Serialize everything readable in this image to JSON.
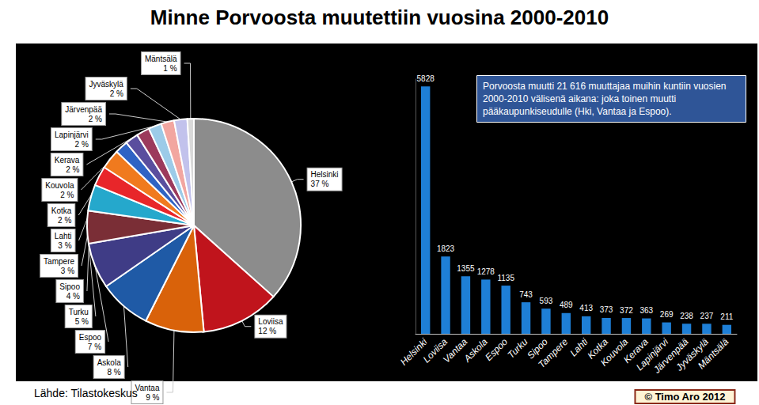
{
  "title": "Minne Porvoosta muutettiin vuosina 2000-2010",
  "source": "Lähde: Tilastokeskus",
  "credit": "© Timo Aro 2012",
  "chart_data": [
    {
      "type": "pie",
      "categories": [
        "Helsinki",
        "Loviisa",
        "Vantaa",
        "Askola",
        "Espoo",
        "Turku",
        "Sipoo",
        "Tampere",
        "Lahti",
        "Kotka",
        "Kouvola",
        "Kerava",
        "Lapinjärvi",
        "Järvenpää",
        "Jyväskylä",
        "Mäntsälä"
      ],
      "values": [
        37,
        12,
        9,
        8,
        7,
        5,
        4,
        3,
        3,
        2,
        2,
        2,
        2,
        2,
        2,
        1
      ],
      "value_labels": [
        "37 %",
        "12 %",
        "9 %",
        "8 %",
        "7 %",
        "5 %",
        "4 %",
        "3 %",
        "3 %",
        "2 %",
        "2 %",
        "2 %",
        "2 %",
        "2 %",
        "2 %",
        "1 %"
      ],
      "colors": [
        "#8c8c8c",
        "#c0141c",
        "#d9620a",
        "#1f5aa6",
        "#3f3c86",
        "#7a2e36",
        "#25a8cc",
        "#e8262a",
        "#f07a1e",
        "#2f63c4",
        "#5a4e9e",
        "#9c3a5c",
        "#9ccbe8",
        "#f2a6a0",
        "#c2c2ec",
        "#d9d9d9"
      ]
    },
    {
      "type": "bar",
      "categories": [
        "Helsinki",
        "Loviisa",
        "Vantaa",
        "Askola",
        "Espoo",
        "Turku",
        "Sipoo",
        "Tampere",
        "Lahti",
        "Kotka",
        "Kouvola",
        "Kerava",
        "Lapinjärvi",
        "Järvenpää",
        "Jyväskylä",
        "Mäntsälä"
      ],
      "values": [
        5828,
        1823,
        1355,
        1278,
        1135,
        743,
        593,
        489,
        413,
        373,
        372,
        363,
        269,
        238,
        237,
        211
      ],
      "color": "#1e7fd6",
      "ylim": [
        0,
        6000
      ],
      "data_labels": true,
      "tick_labels": "x",
      "annotations": [
        "Porvoosta muutti 21 616 muuttajaa muihin kuntiin vuosien 2000-2010 välisenä aikana: joka toinen muutti pääkaupunkiseudulle (Hki, Vantaa ja Espoo)."
      ]
    }
  ]
}
